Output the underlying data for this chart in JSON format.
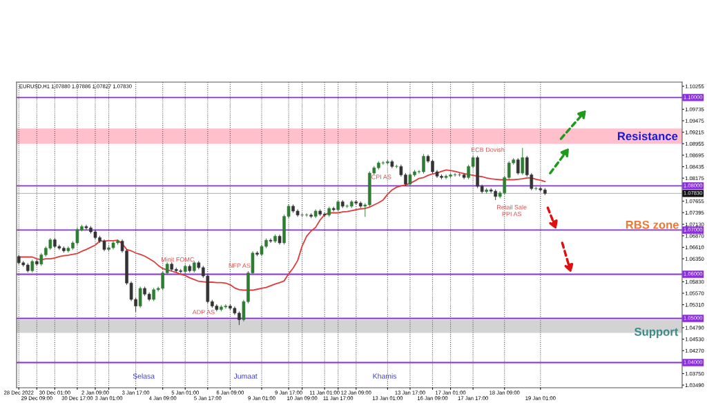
{
  "chart_data": {
    "type": "candlestick",
    "categories": [
      "28 Dec 2022",
      null,
      null,
      null,
      "29 Dec 09:00",
      null,
      null,
      null,
      "30 Dec 01:00",
      null,
      null,
      null,
      null,
      "30 Dec 17:00",
      null,
      null,
      null,
      "2 Jan 09:00",
      null,
      null,
      "3 Jan 01:00",
      null,
      null,
      null,
      null,
      null,
      "3 Jan 17:00",
      null,
      null,
      null,
      null,
      null,
      "4 Jan 09:00",
      null,
      null,
      null,
      null,
      "5 Jan 01:00",
      null,
      null,
      null,
      null,
      "5 Jan 17:00",
      null,
      null,
      null,
      null,
      "6 Jan 09:00",
      null,
      null,
      null,
      null,
      null,
      null,
      "9 Jan 01:00",
      null,
      null,
      null,
      null,
      null,
      "9 Jan 17:00",
      null,
      null,
      "10 Jan 09:00",
      null,
      null,
      null,
      null,
      "11 Jan 01:00",
      null,
      null,
      "11 Jan 17:00",
      null,
      null,
      null,
      "12 Jan 09:00",
      null,
      null,
      null,
      null,
      null,
      null,
      "13 Jan 01:00",
      null,
      null,
      null,
      null,
      "13 Jan 17:00",
      null,
      null,
      null,
      null,
      "16 Jan 09:00",
      null,
      null,
      null,
      "17 Jan 01:00",
      null,
      null,
      null,
      null,
      "17 Jan 17:00",
      null,
      null,
      null,
      null,
      null,
      null,
      "18 Jan 09:00",
      null,
      null,
      null,
      null,
      null,
      null,
      null,
      "19 Jan 01:00",
      null,
      null,
      null,
      null,
      null,
      null,
      null,
      null,
      null,
      null,
      null,
      null,
      null,
      null,
      null,
      null,
      null,
      null,
      null,
      null,
      null,
      null,
      null,
      null,
      null,
      null,
      null,
      null,
      null,
      null,
      null
    ],
    "ohlc": [
      [
        1.064,
        1.0644,
        1.0622,
        1.0626
      ],
      [
        1.0626,
        1.063,
        1.0617,
        1.0621
      ],
      [
        1.0621,
        1.0625,
        1.0604,
        1.0608
      ],
      [
        1.0608,
        1.0633,
        1.0604,
        1.0629
      ],
      [
        1.0629,
        1.0633,
        1.0619,
        1.0623
      ],
      [
        1.0623,
        1.0648,
        1.0619,
        1.0644
      ],
      [
        1.0644,
        1.0663,
        1.064,
        1.0659
      ],
      [
        1.0659,
        1.0682,
        1.0655,
        1.0678
      ],
      [
        1.0678,
        1.0682,
        1.0659,
        1.0663
      ],
      [
        1.0663,
        1.0667,
        1.0655,
        1.0659
      ],
      [
        1.0659,
        1.0663,
        1.0649,
        1.0653
      ],
      [
        1.0653,
        1.0663,
        1.0649,
        1.0659
      ],
      [
        1.0659,
        1.0675,
        1.0655,
        1.0671
      ],
      [
        1.0671,
        1.0705,
        1.0667,
        1.0701
      ],
      [
        1.0701,
        1.0712,
        1.0697,
        1.0708
      ],
      [
        1.0708,
        1.0712,
        1.0701,
        1.0705
      ],
      [
        1.0705,
        1.0709,
        1.0692,
        1.0696
      ],
      [
        1.0696,
        1.07,
        1.0679,
        1.0683
      ],
      [
        1.0683,
        1.0687,
        1.0671,
        1.0675
      ],
      [
        1.0675,
        1.0679,
        1.0652,
        1.0656
      ],
      [
        1.0656,
        1.0664,
        1.0652,
        1.066
      ],
      [
        1.066,
        1.0675,
        1.0656,
        1.0671
      ],
      [
        1.0671,
        1.0679,
        1.0667,
        1.0675
      ],
      [
        1.0675,
        1.0679,
        1.0649,
        1.0653
      ],
      [
        1.0653,
        1.0657,
        1.0576,
        1.058
      ],
      [
        1.058,
        1.0584,
        1.0539,
        1.0543
      ],
      [
        1.0543,
        1.0547,
        1.0515,
        1.0528
      ],
      [
        1.0528,
        1.0572,
        1.0524,
        1.0568
      ],
      [
        1.0568,
        1.0572,
        1.0551,
        1.0555
      ],
      [
        1.0555,
        1.0559,
        1.0539,
        1.0543
      ],
      [
        1.0543,
        1.0569,
        1.0539,
        1.0565
      ],
      [
        1.0565,
        1.0572,
        1.0561,
        1.0568
      ],
      [
        1.0568,
        1.0607,
        1.0564,
        1.0603
      ],
      [
        1.0603,
        1.0627,
        1.0599,
        1.0623
      ],
      [
        1.0623,
        1.0627,
        1.0607,
        1.0611
      ],
      [
        1.0611,
        1.0615,
        1.0604,
        1.0608
      ],
      [
        1.0608,
        1.0612,
        1.0602,
        1.0606
      ],
      [
        1.0606,
        1.0622,
        1.0602,
        1.0618
      ],
      [
        1.0618,
        1.0622,
        1.0604,
        1.0608
      ],
      [
        1.0608,
        1.063,
        1.0604,
        1.0626
      ],
      [
        1.0626,
        1.063,
        1.0611,
        1.0615
      ],
      [
        1.0615,
        1.0619,
        1.0592,
        1.0596
      ],
      [
        1.0596,
        1.06,
        1.0534,
        1.0538
      ],
      [
        1.0538,
        1.0542,
        1.0524,
        1.0528
      ],
      [
        1.0528,
        1.0532,
        1.0516,
        1.052
      ],
      [
        1.052,
        1.053,
        1.0516,
        1.0526
      ],
      [
        1.0526,
        1.0532,
        1.0522,
        1.0528
      ],
      [
        1.0528,
        1.0532,
        1.0519,
        1.0523
      ],
      [
        1.0523,
        1.0527,
        1.0508,
        1.0512
      ],
      [
        1.0512,
        1.0516,
        1.0485,
        1.0497
      ],
      [
        1.0497,
        1.0542,
        1.0493,
        1.0538
      ],
      [
        1.0538,
        1.0607,
        1.0534,
        1.0603
      ],
      [
        1.0603,
        1.0652,
        1.0599,
        1.0648
      ],
      [
        1.0648,
        1.0652,
        1.0641,
        1.0645
      ],
      [
        1.0645,
        1.0667,
        1.0641,
        1.0663
      ],
      [
        1.0663,
        1.0681,
        1.0659,
        1.0677
      ],
      [
        1.0677,
        1.0681,
        1.0671,
        1.0675
      ],
      [
        1.0675,
        1.069,
        1.0671,
        1.0686
      ],
      [
        1.0686,
        1.069,
        1.0667,
        1.0671
      ],
      [
        1.0671,
        1.0735,
        1.0667,
        1.0731
      ],
      [
        1.0731,
        1.0758,
        1.0727,
        1.0754
      ],
      [
        1.0754,
        1.0758,
        1.0739,
        1.0743
      ],
      [
        1.0743,
        1.0747,
        1.073,
        1.0734
      ],
      [
        1.0734,
        1.0738,
        1.073,
        1.0734
      ],
      [
        1.0734,
        1.0738,
        1.073,
        1.0734
      ],
      [
        1.0734,
        1.0738,
        1.0727,
        1.0731
      ],
      [
        1.0731,
        1.0747,
        1.0727,
        1.0743
      ],
      [
        1.0743,
        1.0747,
        1.0732,
        1.0736
      ],
      [
        1.0736,
        1.074,
        1.073,
        1.0734
      ],
      [
        1.0734,
        1.0753,
        1.073,
        1.0749
      ],
      [
        1.0749,
        1.0753,
        1.0742,
        1.0746
      ],
      [
        1.0746,
        1.0768,
        1.0742,
        1.0764
      ],
      [
        1.0764,
        1.0768,
        1.075,
        1.0754
      ],
      [
        1.0754,
        1.0758,
        1.075,
        1.0754
      ],
      [
        1.0754,
        1.0768,
        1.075,
        1.0764
      ],
      [
        1.0764,
        1.0768,
        1.0757,
        1.0761
      ],
      [
        1.0761,
        1.0765,
        1.075,
        1.0754
      ],
      [
        1.0754,
        1.0761,
        1.073,
        1.0757
      ],
      [
        1.0757,
        1.0833,
        1.0753,
        1.0829
      ],
      [
        1.0829,
        1.0845,
        1.0825,
        1.0841
      ],
      [
        1.0841,
        1.0856,
        1.0837,
        1.0852
      ],
      [
        1.0852,
        1.0856,
        1.0848,
        1.0852
      ],
      [
        1.0852,
        1.0859,
        1.0848,
        1.0855
      ],
      [
        1.0855,
        1.0859,
        1.084,
        1.0844
      ],
      [
        1.0844,
        1.0848,
        1.084,
        1.0844
      ],
      [
        1.0844,
        1.0848,
        1.0821,
        1.0825
      ],
      [
        1.0825,
        1.0829,
        1.08,
        1.0804
      ],
      [
        1.0804,
        1.0829,
        1.08,
        1.0825
      ],
      [
        1.0825,
        1.0836,
        1.0821,
        1.0832
      ],
      [
        1.0832,
        1.0836,
        1.0828,
        1.0832
      ],
      [
        1.0832,
        1.0872,
        1.0828,
        1.0867
      ],
      [
        1.0867,
        1.0871,
        1.0852,
        1.0856
      ],
      [
        1.0856,
        1.086,
        1.0828,
        1.0832
      ],
      [
        1.0832,
        1.0836,
        1.0818,
        1.0822
      ],
      [
        1.0822,
        1.0826,
        1.0815,
        1.0819
      ],
      [
        1.0819,
        1.0826,
        1.0815,
        1.0822
      ],
      [
        1.0822,
        1.0829,
        1.0818,
        1.0825
      ],
      [
        1.0825,
        1.0829,
        1.0821,
        1.0825
      ],
      [
        1.0825,
        1.0829,
        1.0821,
        1.0825
      ],
      [
        1.0825,
        1.0829,
        1.0815,
        1.0819
      ],
      [
        1.0819,
        1.0848,
        1.0815,
        1.0844
      ],
      [
        1.0844,
        1.0868,
        1.084,
        1.0864
      ],
      [
        1.0864,
        1.0868,
        1.0795,
        1.0799
      ],
      [
        1.0799,
        1.0803,
        1.0783,
        1.0787
      ],
      [
        1.0787,
        1.0795,
        1.0783,
        1.0791
      ],
      [
        1.0791,
        1.0795,
        1.0784,
        1.0788
      ],
      [
        1.0788,
        1.0792,
        1.0768,
        1.0776
      ],
      [
        1.0776,
        1.0788,
        1.0772,
        1.0784
      ],
      [
        1.0784,
        1.0823,
        1.078,
        1.0819
      ],
      [
        1.0819,
        1.0856,
        1.0815,
        1.0852
      ],
      [
        1.0852,
        1.0863,
        1.0848,
        1.0859
      ],
      [
        1.0859,
        1.0863,
        1.0825,
        1.0829
      ],
      [
        1.0829,
        1.0886,
        1.0825,
        1.0864
      ],
      [
        1.0864,
        1.0868,
        1.0821,
        1.0825
      ],
      [
        1.0825,
        1.0829,
        1.079,
        1.0794
      ],
      [
        1.0794,
        1.0798,
        1.079,
        1.0794
      ],
      [
        1.0794,
        1.0798,
        1.0787,
        1.0791
      ],
      [
        1.0791,
        1.0795,
        1.0779,
        1.0783
      ],
      null,
      null,
      null,
      null,
      null,
      null,
      null,
      null,
      null,
      null,
      null,
      null,
      null,
      null,
      null,
      null,
      null,
      null,
      null,
      null,
      null,
      null,
      null,
      null,
      null,
      null,
      null,
      null,
      null,
      null
    ],
    "colors": [
      "#333333",
      "#333333",
      "#333333",
      "#2e7d32",
      "#333333",
      "#2e7d32",
      "#2e7d32",
      "#2e7d32",
      "#333333",
      "#333333",
      "#333333",
      "#2e7d32",
      "#2e7d32",
      "#2e7d32",
      "#2e7d32",
      "#333333",
      "#333333",
      "#333333",
      "#333333",
      "#333333",
      "#2e7d32",
      "#2e7d32",
      "#2e7d32",
      "#333333",
      "#333333",
      "#333333",
      "#333333",
      "#2e7d32",
      "#333333",
      "#333333",
      "#2e7d32",
      "#2e7d32",
      "#2e7d32",
      "#2e7d32",
      "#333333",
      "#333333",
      "#333333",
      "#2e7d32",
      "#333333",
      "#2e7d32",
      "#333333",
      "#333333",
      "#333333",
      "#333333",
      "#333333",
      "#2e7d32",
      "#2e7d32",
      "#333333",
      "#333333",
      "#333333",
      "#2e7d32",
      "#2e7d32",
      "#2e7d32",
      "#333333",
      "#2e7d32",
      "#2e7d32",
      "#333333",
      "#2e7d32",
      "#333333",
      "#2e7d32",
      "#2e7d32",
      "#333333",
      "#333333",
      "#2e7d32",
      "#2e7d32",
      "#333333",
      "#2e7d32",
      "#333333",
      "#333333",
      "#2e7d32",
      "#333333",
      "#2e7d32",
      "#333333",
      "#2e7d32",
      "#2e7d32",
      "#333333",
      "#333333",
      "#2e7d32",
      "#2e7d32",
      "#2e7d32",
      "#2e7d32",
      "#2e7d32",
      "#2e7d32",
      "#333333",
      "#2e7d32",
      "#333333",
      "#333333",
      "#2e7d32",
      "#2e7d32",
      "#2e7d32",
      "#2e7d32",
      "#333333",
      "#333333",
      "#333333",
      "#333333",
      "#2e7d32",
      "#2e7d32",
      "#2e7d32",
      "#2e7d32",
      "#333333",
      "#2e7d32",
      "#2e7d32",
      "#333333",
      "#333333",
      "#2e7d32",
      "#333333",
      "#333333",
      "#2e7d32",
      "#2e7d32",
      "#2e7d32",
      "#2e7d32",
      "#333333",
      "#2e7d32",
      "#333333",
      "#333333",
      "#2e7d32",
      "#333333",
      "#333333",
      null,
      null,
      null,
      null,
      null,
      null,
      null,
      null,
      null,
      null,
      null,
      null,
      null,
      null,
      null,
      null,
      null,
      null,
      null,
      null,
      null,
      null,
      null,
      null,
      null,
      null,
      null,
      null,
      null,
      null
    ],
    "series": [
      {
        "type": "line",
        "color": "#e03a3a",
        "values": [
          1.0639,
          1.0639,
          1.0639,
          1.0639,
          1.0635,
          1.0633,
          1.0635,
          1.0635,
          1.0637,
          1.064,
          1.0642,
          1.0643,
          1.0645,
          1.0647,
          1.0652,
          1.0656,
          1.0661,
          1.0666,
          1.0675,
          1.0675,
          1.0676,
          1.0676,
          1.0677,
          1.0669,
          1.0656,
          1.0653,
          1.0648,
          1.0645,
          1.0641,
          1.0635,
          1.0629,
          1.062,
          1.0613,
          1.061,
          1.0607,
          1.0604,
          1.06,
          1.0597,
          1.0592,
          1.0588,
          1.0584,
          1.0583,
          1.0582,
          1.0582,
          1.0581,
          1.0581,
          1.058,
          1.0576,
          1.0569,
          1.0565,
          1.0564,
          1.0564,
          1.0564,
          1.0566,
          1.0568,
          1.057,
          1.0574,
          1.0578,
          1.0581,
          1.0585,
          1.0601,
          1.0614,
          1.0631,
          1.0664,
          1.0686,
          1.0698,
          1.0706,
          1.0723,
          1.0735,
          1.0739,
          1.0739,
          1.0739,
          1.0741,
          1.0742,
          1.0744,
          1.0746,
          1.0748,
          1.0749,
          1.0752,
          1.0757,
          1.0762,
          1.0768,
          1.0781,
          1.0791,
          1.0797,
          1.08,
          1.0802,
          1.0806,
          1.0811,
          1.0817,
          1.0819,
          1.0824,
          1.0827,
          1.0829,
          1.0833,
          1.0836,
          1.0835,
          1.0833,
          1.083,
          1.0828,
          1.0826,
          1.0824,
          1.0822,
          1.0821,
          1.0818,
          1.0816,
          1.0815,
          1.0814,
          1.0814,
          1.0814,
          1.0814,
          1.0815,
          1.0816,
          1.0818,
          1.0818,
          1.0815,
          1.0813,
          1.081,
          null,
          null,
          null,
          null,
          null,
          null,
          null,
          null,
          null,
          null,
          null,
          null,
          null,
          null,
          null,
          null,
          null,
          null,
          null,
          null,
          null,
          null,
          null,
          null,
          null,
          null,
          null,
          null,
          null,
          null
        ]
      }
    ],
    "ylim": [
      1.0343,
      1.1035
    ],
    "yticks": [
      1.10255,
      1.09735,
      1.09475,
      1.09215,
      1.08955,
      1.08695,
      1.08435,
      1.08175,
      1.07655,
      1.07395,
      {
        "value": 1.0713,
        "label": "1.07130"
      },
      {
        "value": 1.0687,
        "label": "1.06870"
      },
      {
        "value": 1.0661,
        "label": "1.06610"
      },
      {
        "value": 1.0635,
        "label": "1.06350"
      },
      {
        "value": 1.0583,
        "label": "1.05830"
      },
      {
        "value": 1.0557,
        "label": "1.05570"
      },
      {
        "value": 1.0531,
        "label": "1.05310"
      },
      {
        "value": 1.0479,
        "label": "1.04790"
      },
      {
        "value": 1.0453,
        "label": "1.04530"
      },
      {
        "value": 1.0427,
        "label": "1.04270"
      },
      {
        "value": 1.0375,
        "label": "1.03750"
      },
      {
        "value": 1.0349,
        "label": "1.03490"
      }
    ],
    "grid": "x",
    "bands": [
      {
        "axis": "y",
        "from": 1.0895,
        "to": 1.093,
        "color": "#ffc0cb"
      },
      {
        "axis": "y",
        "from": 1.0467,
        "to": 1.0497,
        "color": "#d3d3d3"
      }
    ],
    "ref_lines": [
      {
        "axis": "y",
        "value": 1.1,
        "label": "1.10000",
        "color": "#8a2be2"
      },
      {
        "axis": "y",
        "value": 1.08,
        "label": "1.08000",
        "color": "#8a2be2"
      },
      {
        "axis": "y",
        "value": 1.07,
        "label": "1.07000",
        "color": "#8a2be2"
      },
      {
        "axis": "y",
        "value": 1.06,
        "label": "1.06000",
        "color": "#8a2be2"
      },
      {
        "axis": "y",
        "value": 1.05,
        "label": "1.05000",
        "color": "#8a2be2"
      },
      {
        "axis": "y",
        "value": 1.04,
        "label": "1.04000",
        "color": "#8a2be2"
      },
      {
        "axis": "y",
        "value": 1.0783,
        "label": "1.07830",
        "color": "#111111"
      }
    ],
    "annotations": [
      "EURUSD,H1 1.07880 1.07886 1.07827 1.07830",
      "CPI AS",
      "ECB Dovish",
      "Minit FOMC",
      "NFP AS",
      "ADP AS",
      "Retail Sale\nPPI AS",
      "Resistance",
      "RBS zone",
      "Support",
      "Selasa",
      "Jumaat",
      "Khamis"
    ]
  }
}
